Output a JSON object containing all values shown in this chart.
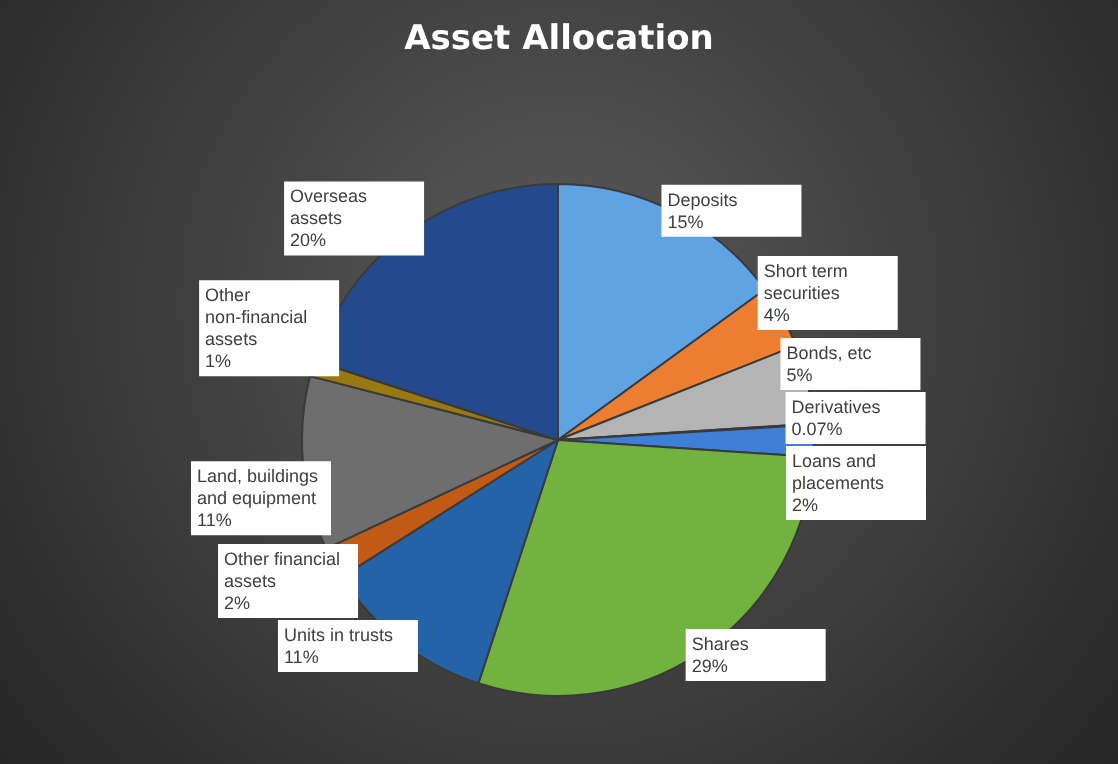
{
  "chart_data": {
    "type": "pie",
    "title": "Asset Allocation",
    "categories": [
      "Deposits",
      "Short term securities",
      "Bonds, etc",
      "Derivatives",
      "Loans and placements",
      "Shares",
      "Units in trusts",
      "Other financial assets",
      "Land, buildings and equipment",
      "Other non-financial assets",
      "Overseas assets"
    ],
    "values": [
      15,
      4,
      5,
      0.07,
      2,
      29,
      11,
      2,
      11,
      1,
      20
    ],
    "value_labels": [
      "15%",
      "4%",
      "5%",
      "0.07%",
      "2%",
      "29%",
      "11%",
      "2%",
      "11%",
      "1%",
      "20%"
    ],
    "colors": [
      "#5fa3e3",
      "#ed7d31",
      "#b4b4b4",
      "#ffc000",
      "#3f7fd8",
      "#72b340",
      "#2563a8",
      "#c05a14",
      "#6e6e6e",
      "#9a7a10",
      "#234a8c"
    ],
    "legend": false
  }
}
